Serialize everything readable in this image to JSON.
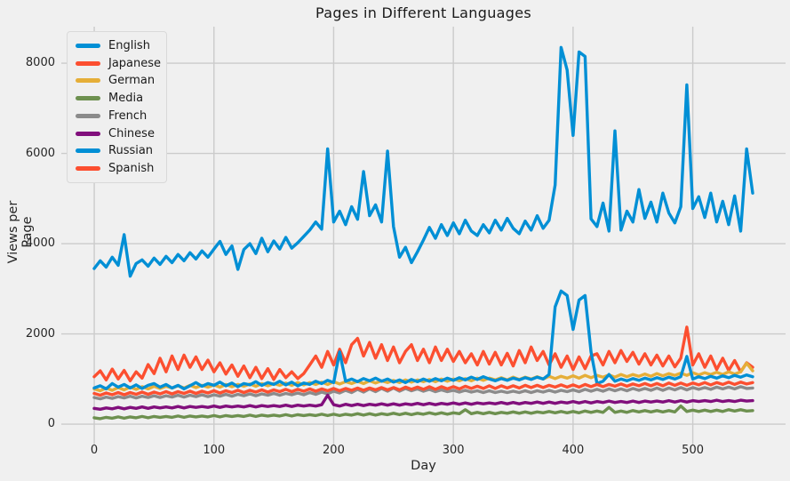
{
  "figure": {
    "title": "Pages in Different Languages",
    "background_color": "#f0f0f0",
    "grid_color": "#cbcbcb",
    "text_color": "#262626"
  },
  "legend": {
    "position": "upper left",
    "items": [
      {
        "label": "English",
        "color": "#008fd5"
      },
      {
        "label": "Japanese",
        "color": "#fc4f30"
      },
      {
        "label": "German",
        "color": "#e5ae38"
      },
      {
        "label": "Media",
        "color": "#6d904f"
      },
      {
        "label": "French",
        "color": "#8b8b8b"
      },
      {
        "label": "Chinese",
        "color": "#810f7c"
      },
      {
        "label": "Russian",
        "color": "#008fd5"
      },
      {
        "label": "Spanish",
        "color": "#fc4f30"
      }
    ]
  },
  "chart_data": {
    "type": "line",
    "title": "Pages in Different Languages",
    "xlabel": "Day",
    "ylabel": "Views per Page",
    "xlim": [
      -27.5,
      577.5
    ],
    "ylim": [
      -315,
      8810
    ],
    "x_ticks": [
      0,
      100,
      200,
      300,
      400,
      500
    ],
    "y_ticks": [
      0,
      2000,
      4000,
      6000,
      8000
    ],
    "grid": true,
    "legend_position": "upper left",
    "x": [
      0,
      5,
      10,
      15,
      20,
      25,
      30,
      35,
      40,
      45,
      50,
      55,
      60,
      65,
      70,
      75,
      80,
      85,
      90,
      95,
      100,
      105,
      110,
      115,
      120,
      125,
      130,
      135,
      140,
      145,
      150,
      155,
      160,
      165,
      170,
      175,
      180,
      185,
      190,
      195,
      200,
      205,
      210,
      215,
      220,
      225,
      230,
      235,
      240,
      245,
      250,
      255,
      260,
      265,
      270,
      275,
      280,
      285,
      290,
      295,
      300,
      305,
      310,
      315,
      320,
      325,
      330,
      335,
      340,
      345,
      350,
      355,
      360,
      365,
      370,
      375,
      380,
      385,
      390,
      395,
      400,
      405,
      410,
      415,
      420,
      425,
      430,
      435,
      440,
      445,
      450,
      455,
      460,
      465,
      470,
      475,
      480,
      485,
      490,
      495,
      500,
      505,
      510,
      515,
      520,
      525,
      530,
      535,
      540,
      545,
      550
    ],
    "series": [
      {
        "name": "English",
        "color": "#008fd5",
        "values": [
          3450,
          3620,
          3480,
          3700,
          3520,
          4200,
          3280,
          3560,
          3640,
          3500,
          3680,
          3540,
          3720,
          3580,
          3760,
          3620,
          3800,
          3660,
          3840,
          3700,
          3880,
          4050,
          3760,
          3950,
          3430,
          3870,
          4000,
          3780,
          4120,
          3820,
          4060,
          3880,
          4140,
          3900,
          4020,
          4160,
          4300,
          4480,
          4320,
          6100,
          4480,
          4720,
          4420,
          4820,
          4540,
          5600,
          4620,
          4860,
          4480,
          6050,
          4380,
          3700,
          3920,
          3580,
          3820,
          4080,
          4360,
          4120,
          4420,
          4180,
          4460,
          4220,
          4520,
          4280,
          4180,
          4420,
          4240,
          4520,
          4300,
          4560,
          4340,
          4220,
          4500,
          4300,
          4620,
          4340,
          4520,
          5300,
          8350,
          7850,
          6400,
          8250,
          8150,
          4550,
          4380,
          4900,
          4280,
          6500,
          4300,
          4720,
          4480,
          5200,
          4560,
          4920,
          4480,
          5120,
          4680,
          4460,
          4820,
          7520,
          4780,
          5040,
          4580,
          5120,
          4480,
          4940,
          4420,
          5060,
          4280,
          6100,
          5120
        ]
      },
      {
        "name": "Japanese",
        "color": "#fc4f30",
        "values": [
          1050,
          1180,
          980,
          1220,
          1000,
          1190,
          960,
          1160,
          1020,
          1320,
          1120,
          1460,
          1160,
          1510,
          1210,
          1530,
          1260,
          1490,
          1210,
          1420,
          1160,
          1360,
          1110,
          1310,
          1060,
          1290,
          1030,
          1260,
          1010,
          1230,
          990,
          1210,
          1030,
          1160,
          1010,
          1120,
          1310,
          1510,
          1260,
          1610,
          1310,
          1660,
          1360,
          1760,
          1900,
          1510,
          1810,
          1460,
          1760,
          1410,
          1710,
          1360,
          1610,
          1760,
          1410,
          1660,
          1360,
          1710,
          1410,
          1660,
          1390,
          1610,
          1360,
          1560,
          1310,
          1610,
          1330,
          1590,
          1310,
          1570,
          1290,
          1630,
          1360,
          1710,
          1410,
          1610,
          1310,
          1560,
          1260,
          1510,
          1210,
          1490,
          1230,
          1510,
          1560,
          1310,
          1610,
          1360,
          1630,
          1390,
          1590,
          1330,
          1560,
          1310,
          1530,
          1290,
          1510,
          1270,
          1460,
          2150,
          1310,
          1560,
          1260,
          1510,
          1210,
          1460,
          1190,
          1410,
          1160,
          1360,
          1260
        ]
      },
      {
        "name": "German",
        "color": "#e5ae38",
        "values": [
          780,
          740,
          800,
          750,
          810,
          760,
          820,
          770,
          830,
          780,
          840,
          790,
          840,
          800,
          850,
          800,
          860,
          810,
          860,
          820,
          870,
          820,
          880,
          830,
          880,
          840,
          890,
          840,
          900,
          850,
          900,
          860,
          910,
          860,
          920,
          870,
          920,
          880,
          930,
          880,
          940,
          890,
          940,
          900,
          950,
          900,
          960,
          910,
          960,
          920,
          970,
          920,
          980,
          930,
          980,
          940,
          990,
          940,
          1000,
          950,
          1000,
          960,
          1010,
          960,
          1020,
          970,
          1020,
          980,
          1030,
          980,
          1040,
          990,
          1040,
          1000,
          1050,
          1000,
          1060,
          1010,
          1060,
          1020,
          1070,
          1020,
          1080,
          1030,
          1080,
          1040,
          1090,
          1040,
          1100,
          1050,
          1100,
          1060,
          1110,
          1060,
          1120,
          1070,
          1120,
          1080,
          1130,
          1080,
          1140,
          1090,
          1140,
          1100,
          1150,
          1100,
          1160,
          1110,
          1160,
          1350,
          1180
        ]
      },
      {
        "name": "Media",
        "color": "#6d904f",
        "values": [
          140,
          120,
          150,
          130,
          160,
          130,
          160,
          140,
          170,
          140,
          170,
          150,
          170,
          150,
          180,
          150,
          180,
          160,
          180,
          160,
          190,
          160,
          190,
          170,
          190,
          170,
          200,
          170,
          200,
          180,
          200,
          180,
          210,
          180,
          210,
          190,
          210,
          190,
          220,
          190,
          220,
          190,
          220,
          200,
          230,
          200,
          230,
          200,
          230,
          210,
          240,
          210,
          240,
          210,
          240,
          220,
          250,
          220,
          250,
          220,
          250,
          230,
          320,
          230,
          260,
          230,
          260,
          230,
          260,
          240,
          270,
          240,
          270,
          240,
          270,
          250,
          280,
          250,
          280,
          250,
          280,
          250,
          290,
          260,
          290,
          260,
          370,
          260,
          290,
          260,
          300,
          270,
          300,
          270,
          300,
          270,
          300,
          270,
          400,
          280,
          310,
          280,
          310,
          280,
          310,
          280,
          320,
          290,
          320,
          290,
          300
        ]
      },
      {
        "name": "French",
        "color": "#8b8b8b",
        "values": [
          590,
          560,
          600,
          570,
          610,
          580,
          620,
          580,
          620,
          590,
          630,
          590,
          630,
          600,
          640,
          600,
          640,
          610,
          650,
          610,
          650,
          620,
          660,
          620,
          660,
          630,
          670,
          630,
          670,
          640,
          680,
          640,
          680,
          650,
          690,
          650,
          700,
          660,
          710,
          670,
          730,
          690,
          750,
          700,
          770,
          710,
          780,
          720,
          790,
          730,
          800,
          730,
          790,
          740,
          780,
          730,
          770,
          720,
          760,
          720,
          750,
          710,
          750,
          710,
          740,
          700,
          740,
          700,
          730,
          700,
          730,
          700,
          740,
          700,
          740,
          710,
          750,
          710,
          750,
          720,
          760,
          720,
          770,
          730,
          770,
          730,
          780,
          740,
          780,
          740,
          790,
          750,
          790,
          750,
          800,
          750,
          800,
          760,
          810,
          760,
          810,
          770,
          810,
          770,
          820,
          780,
          820,
          780,
          830,
          790,
          800
        ]
      },
      {
        "name": "Chinese",
        "color": "#810f7c",
        "values": [
          350,
          330,
          360,
          340,
          370,
          340,
          370,
          350,
          380,
          350,
          380,
          360,
          380,
          360,
          390,
          360,
          390,
          370,
          390,
          370,
          400,
          370,
          400,
          380,
          400,
          380,
          410,
          380,
          410,
          390,
          410,
          390,
          420,
          390,
          420,
          400,
          420,
          400,
          430,
          640,
          430,
          400,
          440,
          410,
          440,
          410,
          440,
          420,
          450,
          420,
          450,
          420,
          450,
          430,
          460,
          430,
          460,
          430,
          460,
          440,
          470,
          440,
          470,
          440,
          470,
          450,
          470,
          450,
          480,
          450,
          480,
          450,
          480,
          460,
          490,
          460,
          490,
          460,
          490,
          470,
          500,
          470,
          500,
          470,
          500,
          480,
          510,
          480,
          500,
          480,
          510,
          480,
          510,
          490,
          510,
          490,
          520,
          490,
          520,
          490,
          520,
          500,
          520,
          500,
          530,
          500,
          520,
          500,
          530,
          510,
          520
        ]
      },
      {
        "name": "Russian",
        "color": "#008fd5",
        "values": [
          800,
          850,
          780,
          900,
          820,
          880,
          800,
          870,
          790,
          860,
          900,
          820,
          880,
          800,
          860,
          780,
          850,
          920,
          840,
          900,
          860,
          930,
          850,
          910,
          830,
          900,
          870,
          940,
          860,
          920,
          880,
          950,
          870,
          930,
          850,
          910,
          880,
          950,
          900,
          970,
          920,
          1600,
          950,
          1000,
          940,
          1010,
          960,
          1020,
          950,
          1000,
          930,
          980,
          920,
          990,
          940,
          1000,
          950,
          1010,
          960,
          1020,
          970,
          1030,
          980,
          1040,
          990,
          1050,
          1000,
          960,
          1010,
          970,
          1020,
          980,
          1030,
          990,
          1040,
          1000,
          1100,
          2600,
          2950,
          2850,
          2100,
          2750,
          2850,
          1600,
          900,
          950,
          1100,
          950,
          1000,
          960,
          1010,
          970,
          1020,
          980,
          1030,
          990,
          1040,
          1000,
          1050,
          1500,
          1000,
          1050,
          1010,
          1060,
          1020,
          1070,
          1030,
          1080,
          1040,
          1090,
          1050
        ]
      },
      {
        "name": "Spanish",
        "color": "#fc4f30",
        "values": [
          680,
          640,
          690,
          650,
          700,
          650,
          700,
          660,
          710,
          660,
          710,
          670,
          720,
          670,
          720,
          680,
          730,
          680,
          730,
          690,
          740,
          690,
          740,
          700,
          750,
          700,
          750,
          710,
          760,
          710,
          760,
          720,
          770,
          720,
          770,
          730,
          780,
          730,
          780,
          740,
          790,
          740,
          790,
          750,
          800,
          750,
          800,
          760,
          810,
          760,
          810,
          760,
          820,
          770,
          820,
          770,
          830,
          770,
          830,
          780,
          830,
          780,
          840,
          790,
          840,
          790,
          850,
          790,
          850,
          800,
          850,
          800,
          860,
          810,
          860,
          810,
          860,
          820,
          870,
          820,
          870,
          820,
          880,
          830,
          880,
          830,
          880,
          840,
          890,
          840,
          890,
          850,
          900,
          850,
          900,
          850,
          910,
          860,
          910,
          860,
          910,
          870,
          920,
          870,
          920,
          880,
          930,
          880,
          930,
          890,
          920
        ]
      }
    ]
  }
}
